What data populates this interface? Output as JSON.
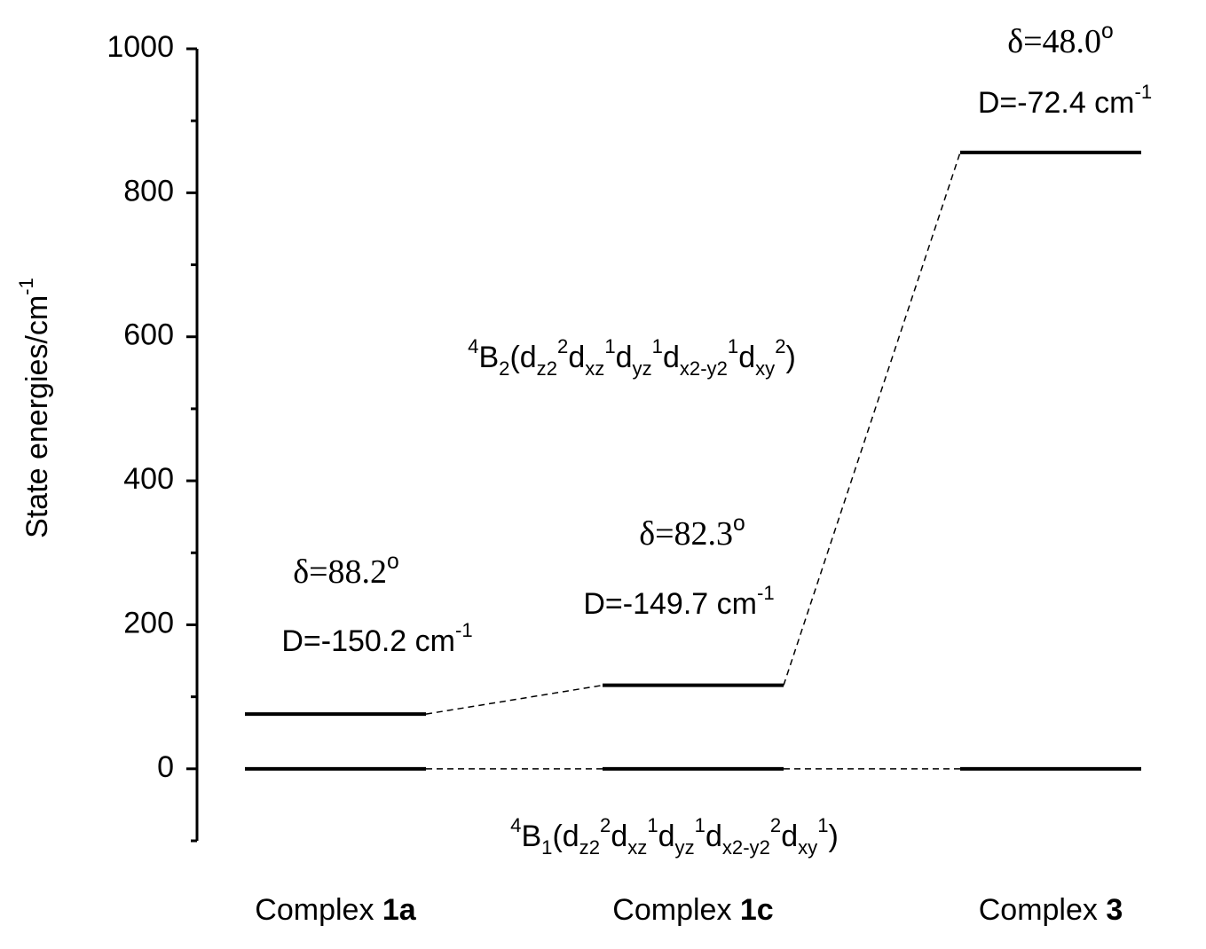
{
  "chart_data": {
    "type": "energy-level",
    "y_label": [
      "State energies/cm",
      {
        "sup": "-1"
      }
    ],
    "categories": [
      [
        "Complex ",
        {
          "bold": "1a"
        }
      ],
      [
        "Complex ",
        {
          "bold": "1c"
        }
      ],
      [
        "Complex ",
        {
          "bold": "3"
        }
      ]
    ],
    "series": [
      {
        "name": [
          {
            "sup": "4"
          },
          "B",
          {
            "sub": "1"
          },
          "(d",
          {
            "sub": "z2"
          },
          {
            "sup": "2"
          },
          "d",
          {
            "sub": "xz"
          },
          {
            "sup": "1"
          },
          "d",
          {
            "sub": "yz"
          },
          {
            "sup": "1"
          },
          "d",
          {
            "sub": "x2-y2"
          },
          {
            "sup": "2"
          },
          "d",
          {
            "sub": "xy"
          },
          {
            "sup": "1"
          },
          ")"
        ],
        "color": "#000000",
        "values": [
          0,
          0,
          0
        ]
      },
      {
        "name": [
          {
            "sup": "4"
          },
          "B",
          {
            "sub": "2"
          },
          "(d",
          {
            "sub": "z2"
          },
          {
            "sup": "2"
          },
          "d",
          {
            "sub": "xz"
          },
          {
            "sup": "1"
          },
          "d",
          {
            "sub": "yz"
          },
          {
            "sup": "1"
          },
          "d",
          {
            "sub": "x2-y2"
          },
          {
            "sup": "1"
          },
          "d",
          {
            "sub": "xy"
          },
          {
            "sup": "2"
          },
          ")"
        ],
        "color": "#000000",
        "values": [
          76,
          116,
          856
        ]
      }
    ],
    "annotations": [
      {
        "angle": [
          "δ=88.2",
          {
            "sup": "o"
          }
        ],
        "D": [
          "D=-150.2 cm",
          {
            "sup": "-1"
          }
        ]
      },
      {
        "angle": [
          "δ=82.3",
          {
            "sup": "o"
          }
        ],
        "D": [
          "D=-149.7 cm",
          {
            "sup": "-1"
          }
        ]
      },
      {
        "angle": [
          "δ=48.0",
          {
            "sup": "o"
          }
        ],
        "D": [
          "D=-72.4 cm",
          {
            "sup": "-1"
          }
        ]
      }
    ],
    "ylim": [
      -100,
      1000
    ],
    "yticks": [
      0,
      200,
      400,
      600,
      800,
      1000
    ],
    "yminorticks": [
      -100,
      100,
      300,
      500,
      700,
      900
    ]
  }
}
